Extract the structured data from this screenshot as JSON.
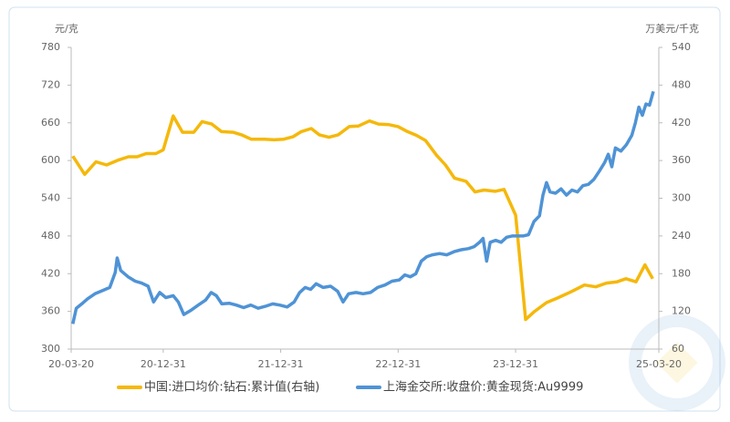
{
  "chart_data": {
    "type": "line",
    "y_unit": "元/克",
    "y2_unit": "万美元/千克",
    "xlim": [
      "20-03-20",
      "25-03-20"
    ],
    "xticks": [
      "20-03-20",
      "20-12-31",
      "21-12-31",
      "22-12-31",
      "23-12-31",
      "25-03-20"
    ],
    "ylim": [
      300,
      780
    ],
    "yticks": [
      300,
      360,
      420,
      480,
      540,
      600,
      660,
      720,
      780
    ],
    "y2lim": [
      60,
      540
    ],
    "y2ticks": [
      60,
      120,
      180,
      240,
      300,
      360,
      420,
      480,
      540
    ],
    "series": [
      {
        "name": "中国:进口均价:钻石:累计值(右轴)",
        "color": "#f5b80b",
        "axis": "y2",
        "x": [
          "20-03-25",
          "20-05-01",
          "20-06-05",
          "20-07-08",
          "20-08-15",
          "20-09-14",
          "20-10-11",
          "20-11-08",
          "20-12-08",
          "20-12-31",
          "21-01-31",
          "21-03-01",
          "21-04-05",
          "21-05-01",
          "21-05-31",
          "21-06-30",
          "21-08-05",
          "21-08-31",
          "21-09-30",
          "21-11-12",
          "21-12-10",
          "22-01-10",
          "22-02-08",
          "22-03-05",
          "22-04-05",
          "22-04-30",
          "22-05-30",
          "22-06-28",
          "22-08-01",
          "22-08-30",
          "22-10-03",
          "22-10-31",
          "22-12-03",
          "22-12-31",
          "23-01-29",
          "23-02-26",
          "23-03-26",
          "23-04-30",
          "23-05-27",
          "23-06-24",
          "23-07-30",
          "23-08-27",
          "23-09-24",
          "23-10-28",
          "23-11-25",
          "23-12-31",
          "24-01-31",
          "24-02-28",
          "24-04-05",
          "24-05-08",
          "24-06-20",
          "24-08-01",
          "24-09-05",
          "24-10-08",
          "24-11-10",
          "24-12-08",
          "25-01-08",
          "25-02-05",
          "25-03-01"
        ],
        "values": [
          367,
          338,
          358,
          353,
          361,
          366,
          366,
          371,
          371,
          377,
          431,
          405,
          405,
          422,
          418,
          406,
          405,
          401,
          394,
          394,
          393,
          394,
          398,
          406,
          411,
          401,
          397,
          401,
          414,
          415,
          423,
          418,
          417,
          414,
          406,
          400,
          392,
          368,
          353,
          332,
          327,
          310,
          313,
          311,
          314,
          273,
          107,
          120,
          134,
          141,
          151,
          162,
          159,
          165,
          167,
          172,
          167,
          194,
          172
        ]
      },
      {
        "name": "上海金交所:收盘价:黄金现货:Au9999",
        "color": "#4f93d6",
        "x": [
          "20-03-25",
          "20-04-05",
          "20-04-22",
          "20-05-10",
          "20-06-02",
          "20-06-25",
          "20-07-18",
          "20-08-04",
          "20-08-10",
          "20-08-21",
          "20-09-13",
          "20-10-05",
          "20-10-25",
          "20-11-14",
          "20-12-01",
          "20-12-20",
          "21-01-08",
          "21-01-31",
          "21-02-16",
          "21-03-05",
          "21-03-28",
          "21-04-19",
          "21-05-12",
          "21-05-29",
          "21-06-14",
          "21-07-01",
          "21-07-24",
          "21-08-15",
          "21-09-07",
          "21-09-29",
          "21-10-22",
          "21-11-13",
          "21-12-06",
          "21-12-28",
          "22-01-20",
          "22-02-11",
          "22-02-28",
          "22-03-17",
          "22-04-03",
          "22-04-20",
          "22-05-12",
          "22-06-04",
          "22-06-26",
          "22-07-13",
          "22-07-30",
          "22-08-22",
          "22-09-13",
          "22-10-06",
          "22-10-28",
          "22-11-20",
          "22-12-12",
          "23-01-04",
          "23-01-21",
          "23-02-07",
          "23-02-24",
          "23-03-13",
          "23-03-30",
          "23-04-16",
          "23-05-09",
          "23-05-31",
          "23-06-23",
          "23-07-15",
          "23-08-07",
          "23-08-24",
          "23-09-10",
          "23-09-21",
          "23-10-02",
          "23-10-13",
          "23-10-30",
          "23-11-16",
          "23-12-03",
          "23-12-20",
          "24-01-06",
          "24-01-23",
          "24-02-09",
          "24-02-26",
          "24-03-14",
          "24-03-25",
          "24-04-05",
          "24-04-16",
          "24-05-03",
          "24-05-20",
          "24-06-06",
          "24-06-23",
          "24-07-10",
          "24-07-27",
          "24-08-13",
          "24-08-30",
          "24-09-16",
          "24-10-03",
          "24-10-14",
          "24-10-25",
          "24-11-05",
          "24-11-22",
          "24-12-09",
          "24-12-26",
          "25-01-06",
          "25-01-17",
          "25-01-28",
          "25-02-08",
          "25-02-19",
          "25-03-03"
        ],
        "values": [
          340,
          365,
          372,
          380,
          388,
          393,
          398,
          422,
          445,
          425,
          415,
          408,
          405,
          400,
          375,
          390,
          382,
          385,
          375,
          355,
          362,
          370,
          378,
          390,
          385,
          372,
          373,
          370,
          366,
          370,
          365,
          368,
          372,
          370,
          367,
          375,
          390,
          398,
          395,
          404,
          398,
          400,
          392,
          375,
          388,
          390,
          388,
          390,
          398,
          402,
          408,
          410,
          418,
          415,
          420,
          440,
          447,
          450,
          452,
          450,
          455,
          458,
          460,
          463,
          470,
          476,
          440,
          470,
          473,
          470,
          478,
          480,
          480,
          480,
          482,
          503,
          512,
          545,
          565,
          550,
          548,
          555,
          545,
          553,
          550,
          560,
          562,
          570,
          583,
          597,
          610,
          590,
          620,
          615,
          625,
          640,
          660,
          685,
          672,
          690,
          688,
          710
        ]
      }
    ]
  }
}
